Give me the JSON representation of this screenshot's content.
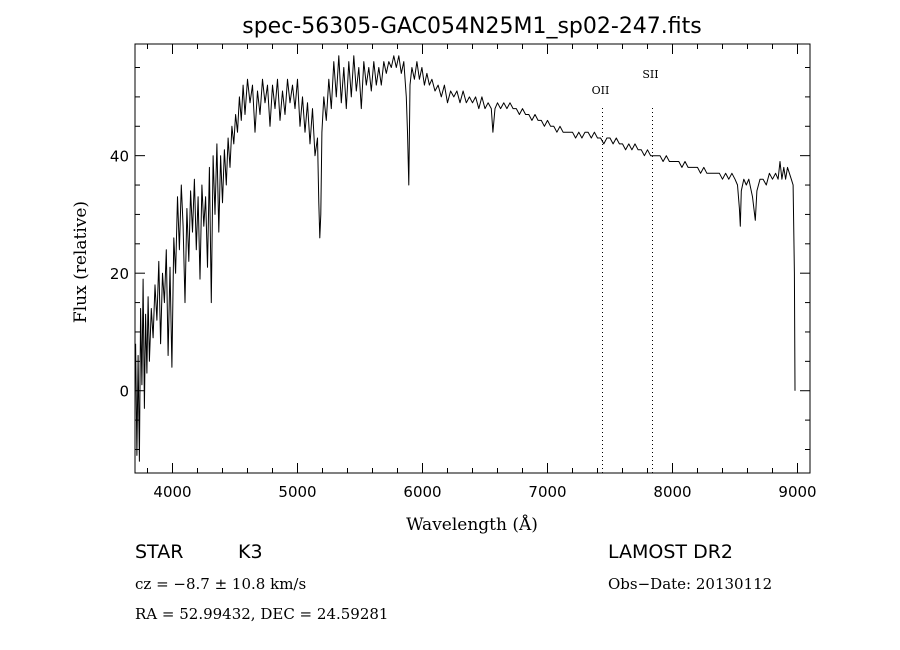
{
  "chart_data": {
    "type": "line",
    "title": "spec-56305-GAC054N25M1_sp02-247.fits",
    "xlabel": "Wavelength (Å)",
    "ylabel": "Flux (relative)",
    "xlim": [
      3700,
      9100
    ],
    "ylim": [
      -14,
      59
    ],
    "x_ticks": [
      4000,
      5000,
      6000,
      7000,
      8000,
      9000
    ],
    "y_ticks": [
      0,
      20,
      40
    ],
    "grid": false,
    "lines": [
      {
        "label": "OII",
        "x": 7440
      },
      {
        "label": "SII",
        "x": 7840
      }
    ],
    "series": [
      {
        "name": "flux",
        "points": [
          [
            3705,
            8
          ],
          [
            3715,
            -11
          ],
          [
            3725,
            6
          ],
          [
            3735,
            -12
          ],
          [
            3745,
            14
          ],
          [
            3755,
            1
          ],
          [
            3765,
            19
          ],
          [
            3775,
            -3
          ],
          [
            3785,
            13
          ],
          [
            3795,
            3
          ],
          [
            3805,
            16
          ],
          [
            3815,
            5
          ],
          [
            3830,
            14
          ],
          [
            3845,
            9
          ],
          [
            3860,
            18
          ],
          [
            3875,
            12
          ],
          [
            3890,
            22
          ],
          [
            3905,
            8
          ],
          [
            3920,
            20
          ],
          [
            3935,
            15
          ],
          [
            3950,
            24
          ],
          [
            3965,
            6
          ],
          [
            3980,
            21
          ],
          [
            3995,
            4
          ],
          [
            4010,
            26
          ],
          [
            4025,
            20
          ],
          [
            4040,
            33
          ],
          [
            4055,
            24
          ],
          [
            4070,
            35
          ],
          [
            4085,
            28
          ],
          [
            4100,
            15
          ],
          [
            4115,
            31
          ],
          [
            4130,
            22
          ],
          [
            4145,
            34
          ],
          [
            4160,
            27
          ],
          [
            4175,
            36
          ],
          [
            4190,
            24
          ],
          [
            4205,
            33
          ],
          [
            4220,
            19
          ],
          [
            4235,
            35
          ],
          [
            4250,
            28
          ],
          [
            4265,
            33
          ],
          [
            4280,
            21
          ],
          [
            4295,
            38
          ],
          [
            4310,
            15
          ],
          [
            4325,
            40
          ],
          [
            4340,
            30
          ],
          [
            4355,
            42
          ],
          [
            4370,
            27
          ],
          [
            4385,
            40
          ],
          [
            4400,
            32
          ],
          [
            4415,
            41
          ],
          [
            4430,
            35
          ],
          [
            4445,
            43
          ],
          [
            4460,
            38
          ],
          [
            4475,
            45
          ],
          [
            4490,
            42
          ],
          [
            4505,
            47
          ],
          [
            4520,
            44
          ],
          [
            4535,
            50
          ],
          [
            4550,
            46
          ],
          [
            4565,
            52
          ],
          [
            4580,
            47
          ],
          [
            4600,
            53
          ],
          [
            4620,
            49
          ],
          [
            4640,
            52
          ],
          [
            4660,
            44
          ],
          [
            4680,
            51
          ],
          [
            4700,
            47
          ],
          [
            4720,
            53
          ],
          [
            4740,
            49
          ],
          [
            4760,
            52
          ],
          [
            4780,
            45
          ],
          [
            4800,
            52
          ],
          [
            4820,
            48
          ],
          [
            4840,
            53
          ],
          [
            4860,
            46
          ],
          [
            4880,
            51
          ],
          [
            4900,
            47
          ],
          [
            4920,
            53
          ],
          [
            4940,
            49
          ],
          [
            4960,
            52
          ],
          [
            4980,
            48
          ],
          [
            5000,
            53
          ],
          [
            5020,
            45
          ],
          [
            5040,
            50
          ],
          [
            5060,
            44
          ],
          [
            5080,
            49
          ],
          [
            5100,
            42
          ],
          [
            5120,
            48
          ],
          [
            5140,
            40
          ],
          [
            5160,
            43
          ],
          [
            5170,
            32
          ],
          [
            5178,
            26
          ],
          [
            5186,
            30
          ],
          [
            5195,
            44
          ],
          [
            5210,
            50
          ],
          [
            5230,
            46
          ],
          [
            5250,
            53
          ],
          [
            5270,
            48
          ],
          [
            5290,
            56
          ],
          [
            5310,
            50
          ],
          [
            5330,
            57
          ],
          [
            5350,
            49
          ],
          [
            5370,
            55
          ],
          [
            5390,
            48
          ],
          [
            5410,
            56
          ],
          [
            5430,
            50
          ],
          [
            5450,
            57
          ],
          [
            5470,
            51
          ],
          [
            5490,
            55
          ],
          [
            5510,
            48
          ],
          [
            5530,
            56
          ],
          [
            5550,
            52
          ],
          [
            5570,
            55
          ],
          [
            5590,
            51
          ],
          [
            5610,
            56
          ],
          [
            5630,
            52
          ],
          [
            5650,
            55
          ],
          [
            5670,
            52
          ],
          [
            5690,
            56
          ],
          [
            5710,
            54
          ],
          [
            5730,
            56
          ],
          [
            5750,
            55
          ],
          [
            5770,
            57
          ],
          [
            5790,
            55
          ],
          [
            5810,
            57
          ],
          [
            5830,
            54
          ],
          [
            5850,
            56
          ],
          [
            5870,
            50
          ],
          [
            5880,
            44
          ],
          [
            5890,
            35
          ],
          [
            5900,
            52
          ],
          [
            5915,
            55
          ],
          [
            5935,
            53
          ],
          [
            5955,
            56
          ],
          [
            5975,
            53
          ],
          [
            5995,
            55
          ],
          [
            6015,
            52
          ],
          [
            6035,
            54
          ],
          [
            6055,
            52
          ],
          [
            6075,
            53
          ],
          [
            6100,
            51
          ],
          [
            6125,
            52
          ],
          [
            6150,
            50
          ],
          [
            6175,
            52
          ],
          [
            6200,
            49
          ],
          [
            6225,
            51
          ],
          [
            6250,
            50
          ],
          [
            6275,
            51
          ],
          [
            6300,
            49
          ],
          [
            6325,
            51
          ],
          [
            6350,
            49
          ],
          [
            6375,
            50
          ],
          [
            6400,
            49
          ],
          [
            6425,
            50
          ],
          [
            6450,
            48
          ],
          [
            6475,
            50
          ],
          [
            6500,
            48
          ],
          [
            6525,
            49
          ],
          [
            6550,
            48
          ],
          [
            6563,
            44
          ],
          [
            6580,
            48
          ],
          [
            6600,
            49
          ],
          [
            6625,
            48
          ],
          [
            6650,
            49
          ],
          [
            6675,
            48
          ],
          [
            6700,
            49
          ],
          [
            6725,
            48
          ],
          [
            6750,
            48
          ],
          [
            6775,
            47
          ],
          [
            6800,
            48
          ],
          [
            6825,
            47
          ],
          [
            6850,
            47
          ],
          [
            6875,
            46
          ],
          [
            6900,
            47
          ],
          [
            6925,
            46
          ],
          [
            6950,
            46
          ],
          [
            6975,
            45
          ],
          [
            7000,
            46
          ],
          [
            7025,
            45
          ],
          [
            7050,
            45
          ],
          [
            7075,
            44
          ],
          [
            7100,
            45
          ],
          [
            7125,
            44
          ],
          [
            7150,
            44
          ],
          [
            7175,
            44
          ],
          [
            7200,
            44
          ],
          [
            7225,
            43
          ],
          [
            7250,
            44
          ],
          [
            7275,
            43
          ],
          [
            7300,
            44
          ],
          [
            7325,
            44
          ],
          [
            7350,
            43
          ],
          [
            7375,
            44
          ],
          [
            7400,
            43
          ],
          [
            7425,
            43
          ],
          [
            7450,
            42
          ],
          [
            7475,
            43
          ],
          [
            7500,
            43
          ],
          [
            7525,
            42
          ],
          [
            7550,
            43
          ],
          [
            7575,
            42
          ],
          [
            7600,
            42
          ],
          [
            7625,
            41
          ],
          [
            7650,
            42
          ],
          [
            7675,
            41
          ],
          [
            7700,
            42
          ],
          [
            7725,
            41
          ],
          [
            7750,
            41
          ],
          [
            7775,
            40
          ],
          [
            7800,
            41
          ],
          [
            7825,
            40
          ],
          [
            7850,
            40
          ],
          [
            7875,
            40
          ],
          [
            7900,
            40
          ],
          [
            7925,
            39
          ],
          [
            7950,
            40
          ],
          [
            7975,
            39
          ],
          [
            8000,
            39
          ],
          [
            8025,
            39
          ],
          [
            8050,
            39
          ],
          [
            8075,
            38
          ],
          [
            8100,
            39
          ],
          [
            8125,
            38
          ],
          [
            8150,
            38
          ],
          [
            8175,
            38
          ],
          [
            8200,
            38
          ],
          [
            8225,
            37
          ],
          [
            8250,
            38
          ],
          [
            8275,
            37
          ],
          [
            8300,
            37
          ],
          [
            8325,
            37
          ],
          [
            8350,
            37
          ],
          [
            8375,
            37
          ],
          [
            8400,
            36
          ],
          [
            8425,
            37
          ],
          [
            8450,
            36
          ],
          [
            8475,
            37
          ],
          [
            8500,
            36
          ],
          [
            8520,
            35
          ],
          [
            8535,
            31
          ],
          [
            8542,
            28
          ],
          [
            8550,
            34
          ],
          [
            8570,
            36
          ],
          [
            8590,
            35
          ],
          [
            8610,
            36
          ],
          [
            8640,
            33
          ],
          [
            8662,
            29
          ],
          [
            8675,
            34
          ],
          [
            8700,
            36
          ],
          [
            8725,
            36
          ],
          [
            8750,
            35
          ],
          [
            8775,
            37
          ],
          [
            8800,
            36
          ],
          [
            8825,
            37
          ],
          [
            8845,
            36
          ],
          [
            8860,
            39
          ],
          [
            8875,
            36
          ],
          [
            8890,
            38
          ],
          [
            8905,
            36
          ],
          [
            8920,
            38
          ],
          [
            8935,
            37
          ],
          [
            8950,
            36
          ],
          [
            8965,
            35
          ],
          [
            8975,
            20
          ],
          [
            8980,
            0
          ]
        ]
      }
    ]
  },
  "info": {
    "object_class": "STAR",
    "subclass": "K3",
    "survey": "LAMOST DR2",
    "cz": "cz = −8.7 ± 10.8 km/s",
    "obs_date": "Obs−Date: 20130112",
    "coords": "RA =  52.99432, DEC =  24.59281"
  }
}
